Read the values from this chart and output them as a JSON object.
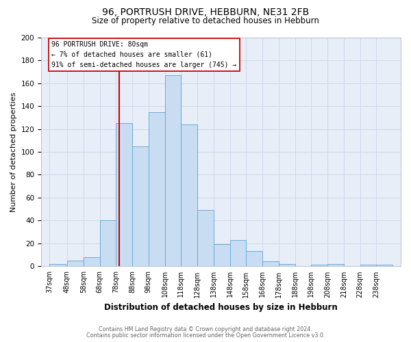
{
  "title": "96, PORTRUSH DRIVE, HEBBURN, NE31 2FB",
  "subtitle": "Size of property relative to detached houses in Hebburn",
  "xlabel": "Distribution of detached houses by size in Hebburn",
  "ylabel": "Number of detached properties",
  "bar_color": "#c9ddf2",
  "bar_edge_color": "#6aaad4",
  "grid_color": "#cdd8ea",
  "ax_background": "#e8eef8",
  "fig_background": "#ffffff",
  "bins_labels": [
    "37sqm",
    "48sqm",
    "58sqm",
    "68sqm",
    "78sqm",
    "88sqm",
    "98sqm",
    "108sqm",
    "118sqm",
    "128sqm",
    "138sqm",
    "148sqm",
    "158sqm",
    "168sqm",
    "178sqm",
    "188sqm",
    "198sqm",
    "208sqm",
    "218sqm",
    "228sqm",
    "238sqm"
  ],
  "values": [
    2,
    5,
    8,
    40,
    125,
    105,
    135,
    167,
    124,
    49,
    19,
    23,
    13,
    4,
    2,
    0,
    1,
    2,
    0,
    1,
    1
  ],
  "bin_starts": [
    37,
    48,
    58,
    68,
    78,
    88,
    98,
    108,
    118,
    128,
    138,
    148,
    158,
    168,
    178,
    188,
    198,
    208,
    218,
    228,
    238
  ],
  "bin_width": 10,
  "vline_x": 80,
  "vline_color": "#cc0000",
  "ann_line1": "96 PORTRUSH DRIVE: 80sqm",
  "ann_line2": "← 7% of detached houses are smaller (61)",
  "ann_line3": "91% of semi-detached houses are larger (745) →",
  "ann_box_fc": "#ffffff",
  "ann_box_ec": "#cc0000",
  "ylim_max": 200,
  "yticks": [
    0,
    20,
    40,
    60,
    80,
    100,
    120,
    140,
    160,
    180,
    200
  ],
  "footer1": "Contains HM Land Registry data © Crown copyright and database right 2024.",
  "footer2": "Contains public sector information licensed under the Open Government Licence v3.0."
}
